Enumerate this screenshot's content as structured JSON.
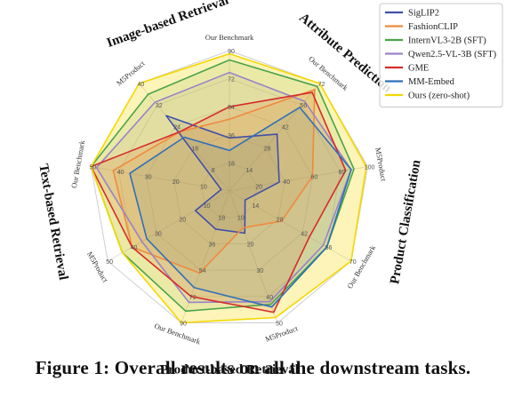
{
  "caption": "Figure 1: Overall results on all the downstream tasks.",
  "chart_data": {
    "type": "radar",
    "title": "",
    "axes": [
      {
        "label": "Our Benchmark",
        "ticks": [
          18,
          36,
          54,
          72,
          90
        ],
        "max": 90
      },
      {
        "label": "Our Benchmark",
        "ticks": [
          14,
          28,
          42,
          56,
          72
        ],
        "max": 72
      },
      {
        "label": "M5Product",
        "ticks": [
          20,
          40,
          60,
          80,
          100
        ],
        "max": 100
      },
      {
        "label": "Our Benchmark",
        "ticks": [
          14,
          28,
          42,
          56,
          70
        ],
        "max": 70
      },
      {
        "label": "M5Product",
        "ticks": [
          10,
          20,
          30,
          40,
          50
        ],
        "max": 50
      },
      {
        "label": "Our Benchmark",
        "ticks": [
          18,
          36,
          54,
          72,
          90
        ],
        "max": 90
      },
      {
        "label": "M5Product",
        "ticks": [
          10,
          20,
          30,
          40,
          50
        ],
        "max": 50
      },
      {
        "label": "Our Benchmark",
        "ticks": [
          10,
          20,
          30,
          40,
          50
        ],
        "max": 50
      },
      {
        "label": "M5Product",
        "ticks": [
          8,
          16,
          24,
          32,
          40
        ],
        "max": 40
      }
    ],
    "task_labels": [
      {
        "text": "Image-based Retrieval",
        "axes": [
          8,
          0
        ]
      },
      {
        "text": "Attribute Prediction",
        "axes": [
          1
        ]
      },
      {
        "text": "Product Classification",
        "axes": [
          2,
          3
        ]
      },
      {
        "text": "Product-based Retrieval",
        "axes": [
          4,
          5
        ]
      },
      {
        "text": "Text-based Retrieval",
        "axes": [
          6,
          7
        ]
      }
    ],
    "series": [
      {
        "name": "SigLIP2",
        "color": "#4050a8",
        "values": [
          34,
          38,
          36,
          9,
          16,
          26,
          14,
          3,
          28
        ]
      },
      {
        "name": "FashionCLIP",
        "color": "#f08a3c",
        "values": [
          46,
          68,
          60,
          30,
          14,
          56,
          40,
          42,
          22
        ]
      },
      {
        "name": "InternVL3-2B (SFT)",
        "color": "#4ba34b",
        "values": [
          84,
          70,
          90,
          56,
          43,
          82,
          44,
          50,
          36
        ]
      },
      {
        "name": "Qwen2.5-VL-3B (SFT)",
        "color": "#9a82c8",
        "values": [
          76,
          60,
          88,
          54,
          42,
          76,
          36,
          48,
          33
        ]
      },
      {
        "name": "GME",
        "color": "#d62c2c",
        "values": [
          54,
          66,
          84,
          46,
          46,
          72,
          40,
          50,
          22
        ]
      },
      {
        "name": "MM-Embed",
        "color": "#2f70b8",
        "values": [
          26,
          56,
          88,
          56,
          44,
          66,
          34,
          36,
          20
        ]
      },
      {
        "name": "Ours (zero-shot)",
        "color": "#f5d800",
        "values": [
          88,
          72,
          99,
          70,
          48,
          90,
          44,
          50,
          40
        ]
      }
    ],
    "legend_position": "top-right",
    "grid": true
  }
}
